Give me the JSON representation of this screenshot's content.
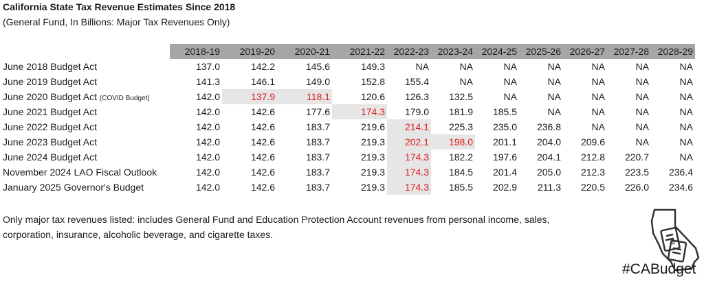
{
  "chart_data": {
    "type": "table",
    "title": "California State Tax Revenue Estimates Since 2018",
    "subtitle": "(General Fund, In Billions: Major Tax Revenues Only)",
    "columns": [
      "2018-19",
      "2019-20",
      "2020-21",
      "2021-22",
      "2022-23",
      "2023-24",
      "2024-25",
      "2025-26",
      "2026-27",
      "2027-28",
      "2028-29"
    ],
    "rows": [
      {
        "label": "June 2018 Budget Act",
        "note": "",
        "values": [
          "137.0",
          "142.2",
          "145.6",
          "149.3",
          "NA",
          "NA",
          "NA",
          "NA",
          "NA",
          "NA",
          "NA"
        ],
        "highlight": [],
        "red": []
      },
      {
        "label": "June 2019 Budget Act",
        "note": "",
        "values": [
          "141.3",
          "146.1",
          "149.0",
          "152.8",
          "155.4",
          "NA",
          "NA",
          "NA",
          "NA",
          "NA",
          "NA"
        ],
        "highlight": [],
        "red": []
      },
      {
        "label": "June 2020 Budget Act",
        "note": "(COVID Budget)",
        "values": [
          "142.0",
          "137.9",
          "118.1",
          "120.6",
          "126.3",
          "132.5",
          "NA",
          "NA",
          "NA",
          "NA",
          "NA"
        ],
        "highlight": [
          1,
          2
        ],
        "red": [
          1,
          2
        ]
      },
      {
        "label": "June 2021 Budget Act",
        "note": "",
        "values": [
          "142.0",
          "142.6",
          "177.6",
          "174.3",
          "179.0",
          "181.9",
          "185.5",
          "NA",
          "NA",
          "NA",
          "NA"
        ],
        "highlight": [
          3
        ],
        "red": [
          3
        ]
      },
      {
        "label": "June 2022 Budget Act",
        "note": "",
        "values": [
          "142.0",
          "142.6",
          "183.7",
          "219.6",
          "214.1",
          "225.3",
          "235.0",
          "236.8",
          "NA",
          "NA",
          "NA"
        ],
        "highlight": [
          4
        ],
        "red": [
          4
        ]
      },
      {
        "label": "June 2023 Budget Act",
        "note": "",
        "values": [
          "142.0",
          "142.6",
          "183.7",
          "219.3",
          "202.1",
          "198.0",
          "201.1",
          "204.0",
          "209.6",
          "NA",
          "NA"
        ],
        "highlight": [
          4,
          5
        ],
        "red": [
          4,
          5
        ]
      },
      {
        "label": "June 2024 Budget Act",
        "note": "",
        "values": [
          "142.0",
          "142.6",
          "183.7",
          "219.3",
          "174.3",
          "182.2",
          "197.6",
          "204.1",
          "212.8",
          "220.7",
          "NA"
        ],
        "highlight": [
          4
        ],
        "red": [
          4
        ]
      },
      {
        "label": "November 2024 LAO Fiscal Outlook",
        "note": "",
        "values": [
          "142.0",
          "142.6",
          "183.7",
          "219.3",
          "174.3",
          "184.5",
          "201.4",
          "205.0",
          "212.3",
          "223.5",
          "236.4"
        ],
        "highlight": [
          4
        ],
        "red": [
          4
        ]
      },
      {
        "label": "January 2025 Governor's Budget",
        "note": "",
        "values": [
          "142.0",
          "142.6",
          "183.7",
          "219.3",
          "174.3",
          "185.5",
          "202.9",
          "211.3",
          "220.5",
          "226.0",
          "234.6"
        ],
        "highlight": [
          4
        ],
        "red": [
          4
        ]
      }
    ],
    "colors": {
      "header_bg": "#a6a6a6",
      "highlight_bg": "#e6e6e6",
      "red_text": "#e01b1b"
    }
  },
  "footnote": "Only major tax revenues listed: includes General Fund and Education Protection Account revenues from personal income, sales, corporation, insurance, alcoholic beverage, and cigarette taxes.",
  "brand": {
    "hashtag": "#CABudget",
    "logo_icon": "california-money-icon"
  }
}
